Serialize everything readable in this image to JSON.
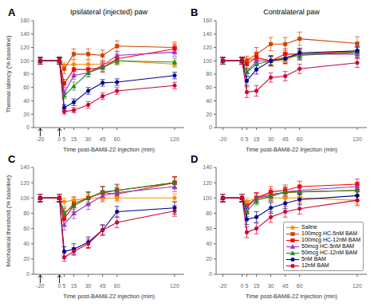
{
  "chart_data": [
    {
      "type": "line",
      "title": "Ipsilateral (injected) paw",
      "y_label": "Thermal latency (% baseline)",
      "x_label": "Time post-BAM8-22 injection (min)",
      "x": [
        -20,
        0,
        5,
        15,
        30,
        45,
        60,
        120
      ],
      "xlim": [
        -27,
        130
      ],
      "xticks": [
        -20,
        0,
        5,
        15,
        30,
        45,
        60,
        120
      ],
      "ylim": [
        0,
        160
      ],
      "yticks": [
        0,
        20,
        40,
        60,
        80,
        100,
        120,
        140,
        160
      ],
      "grid": false,
      "annotations": [
        {
          "text": "A"
        },
        {
          "x": -20,
          "arrow": true
        },
        {
          "x": 0,
          "arrow": true
        }
      ],
      "series": [
        {
          "name": "Saline",
          "color": "#FF8C00",
          "marker": "circle",
          "line_style": "dashed_before",
          "values": [
            100,
            100,
            93,
            95,
            95,
            95,
            100,
            95
          ],
          "errors": [
            5,
            5,
            5,
            5,
            5,
            5,
            5,
            5
          ]
        },
        {
          "name": "100mcg HC-5nM BAM",
          "color": "#CC4400",
          "marker": "square",
          "line_style": "solid",
          "values": [
            100,
            100,
            88,
            110,
            110,
            108,
            122,
            120
          ],
          "errors": [
            5,
            5,
            7,
            8,
            8,
            8,
            8,
            8
          ]
        },
        {
          "name": "100mcg HC-12nM BAM",
          "color": "#FF0000",
          "marker": "square",
          "line_style": "solid",
          "values": [
            100,
            100,
            66,
            87,
            87,
            90,
            103,
            118
          ],
          "errors": [
            5,
            5,
            6,
            7,
            7,
            7,
            7,
            7
          ]
        },
        {
          "name": "50mcg HC-5nM BAM",
          "color": "#9933CC",
          "marker": "triangle",
          "line_style": "dashed_before",
          "values": [
            100,
            100,
            52,
            78,
            82,
            93,
            108,
            113
          ],
          "errors": [
            5,
            5,
            5,
            6,
            6,
            6,
            6,
            6
          ]
        },
        {
          "name": "50mcg HC-12nM BAM",
          "color": "#228B22",
          "marker": "triangle",
          "line_style": "solid",
          "values": [
            100,
            100,
            48,
            62,
            82,
            90,
            100,
            98
          ],
          "errors": [
            5,
            5,
            5,
            6,
            6,
            6,
            6,
            6
          ]
        },
        {
          "name": "5nM BAM",
          "color": "#00008B",
          "marker": "circle",
          "line_style": "solid",
          "values": [
            100,
            100,
            30,
            38,
            55,
            67,
            68,
            78
          ],
          "errors": [
            5,
            5,
            4,
            5,
            5,
            5,
            5,
            5
          ]
        },
        {
          "name": "12nM BAM",
          "color": "#CC0033",
          "marker": "circle",
          "line_style": "solid",
          "values": [
            100,
            100,
            24,
            26,
            34,
            47,
            55,
            63
          ],
          "errors": [
            5,
            5,
            4,
            4,
            5,
            5,
            5,
            5
          ]
        }
      ]
    },
    {
      "type": "line",
      "title": "Contralateral paw",
      "x_label": "Time post-BAM8-22 injection (min)",
      "x": [
        -20,
        0,
        5,
        15,
        30,
        45,
        60,
        120
      ],
      "xlim": [
        -27,
        130
      ],
      "xticks": [
        -20,
        0,
        5,
        15,
        30,
        45,
        60,
        120
      ],
      "ylim": [
        0,
        160
      ],
      "yticks": [
        0,
        20,
        40,
        60,
        80,
        100,
        120,
        140,
        160
      ],
      "grid": false,
      "annotations": [
        {
          "text": "B"
        }
      ],
      "series": [
        {
          "name": "Saline",
          "color": "#FF8C00",
          "marker": "circle",
          "line_style": "dashed_before",
          "values": [
            100,
            100,
            100,
            104,
            100,
            100,
            110,
            115
          ],
          "errors": [
            5,
            5,
            5,
            5,
            5,
            5,
            5,
            5
          ]
        },
        {
          "name": "100mcg HC-5nM BAM",
          "color": "#CC4400",
          "marker": "square",
          "line_style": "solid",
          "values": [
            100,
            100,
            100,
            110,
            125,
            125,
            133,
            126
          ],
          "errors": [
            5,
            5,
            7,
            10,
            10,
            10,
            10,
            10
          ]
        },
        {
          "name": "100mcg HC-12nM BAM",
          "color": "#FF0000",
          "marker": "square",
          "line_style": "solid",
          "values": [
            100,
            100,
            95,
            105,
            100,
            110,
            110,
            113
          ],
          "errors": [
            5,
            5,
            8,
            8,
            8,
            8,
            8,
            8
          ]
        },
        {
          "name": "50mcg HC-5nM BAM",
          "color": "#9933CC",
          "marker": "triangle",
          "line_style": "dashed_before",
          "values": [
            100,
            100,
            83,
            100,
            100,
            105,
            110,
            110
          ],
          "errors": [
            5,
            5,
            6,
            7,
            7,
            7,
            7,
            7
          ]
        },
        {
          "name": "50mcg HC-12nM BAM",
          "color": "#228B22",
          "marker": "triangle",
          "line_style": "solid",
          "values": [
            100,
            100,
            83,
            95,
            100,
            105,
            108,
            113
          ],
          "errors": [
            5,
            5,
            6,
            6,
            7,
            7,
            7,
            7
          ]
        },
        {
          "name": "5nM BAM",
          "color": "#00008B",
          "marker": "circle",
          "line_style": "solid",
          "values": [
            100,
            100,
            70,
            87,
            100,
            103,
            112,
            115
          ],
          "errors": [
            5,
            5,
            7,
            7,
            7,
            7,
            7,
            7
          ]
        },
        {
          "name": "12nM BAM",
          "color": "#CC0033",
          "marker": "circle",
          "line_style": "solid",
          "values": [
            100,
            100,
            53,
            55,
            75,
            77,
            88,
            97
          ],
          "errors": [
            5,
            5,
            8,
            8,
            7,
            7,
            7,
            7
          ]
        }
      ]
    },
    {
      "type": "line",
      "y_label": "Mechanical threshold (% baseline)",
      "x_label": "Time post-BAM8-22 injection (min)",
      "x": [
        -20,
        0,
        5,
        15,
        30,
        45,
        60,
        120
      ],
      "xlim": [
        -27,
        130
      ],
      "xticks": [
        -20,
        0,
        5,
        15,
        30,
        45,
        60,
        120
      ],
      "ylim": [
        0,
        140
      ],
      "yticks": [
        0,
        20,
        40,
        60,
        80,
        100,
        120,
        140
      ],
      "grid": false,
      "annotations": [
        {
          "text": "C"
        },
        {
          "x": -20,
          "arrow": true
        },
        {
          "x": 0,
          "arrow": true
        }
      ],
      "series": [
        {
          "name": "Saline",
          "color": "#FF8C00",
          "marker": "circle",
          "line_style": "dashed_before",
          "values": [
            100,
            100,
            95,
            97,
            100,
            100,
            100,
            100
          ],
          "errors": [
            5,
            5,
            5,
            5,
            5,
            5,
            5,
            5
          ]
        },
        {
          "name": "100mcg HC-5nM BAM",
          "color": "#CC4400",
          "marker": "square",
          "line_style": "solid",
          "values": [
            100,
            100,
            78,
            93,
            100,
            107,
            105,
            120
          ],
          "errors": [
            5,
            5,
            8,
            8,
            8,
            8,
            8,
            8
          ]
        },
        {
          "name": "100mcg HC-12nM BAM",
          "color": "#FF0000",
          "marker": "square",
          "line_style": "solid",
          "values": [
            100,
            100,
            73,
            90,
            100,
            107,
            110,
            120
          ],
          "errors": [
            5,
            5,
            10,
            8,
            8,
            8,
            8,
            8
          ]
        },
        {
          "name": "50mcg HC-5nM BAM",
          "color": "#9933CC",
          "marker": "triangle",
          "line_style": "dashed_before",
          "values": [
            100,
            100,
            65,
            80,
            92,
            103,
            107,
            115
          ],
          "errors": [
            5,
            5,
            7,
            7,
            7,
            7,
            7,
            7
          ]
        },
        {
          "name": "50mcg HC-12nM BAM",
          "color": "#228B22",
          "marker": "triangle",
          "line_style": "solid",
          "values": [
            100,
            100,
            80,
            90,
            100,
            108,
            110,
            120
          ],
          "errors": [
            5,
            5,
            8,
            8,
            7,
            7,
            7,
            7
          ]
        },
        {
          "name": "5nM BAM",
          "color": "#00008B",
          "marker": "circle",
          "line_style": "solid",
          "values": [
            100,
            100,
            30,
            33,
            42,
            58,
            82,
            87
          ],
          "errors": [
            5,
            5,
            6,
            7,
            7,
            7,
            7,
            8
          ]
        },
        {
          "name": "12nM BAM",
          "color": "#CC0033",
          "marker": "circle",
          "line_style": "solid",
          "values": [
            100,
            100,
            22,
            30,
            40,
            58,
            68,
            83
          ],
          "errors": [
            5,
            5,
            5,
            5,
            6,
            6,
            7,
            7
          ]
        }
      ]
    },
    {
      "type": "line",
      "x_label": "Time post-BAM8-22 injection (min)",
      "x": [
        -20,
        0,
        5,
        15,
        30,
        45,
        60,
        120
      ],
      "xlim": [
        -27,
        130
      ],
      "xticks": [
        -20,
        0,
        5,
        15,
        30,
        45,
        60,
        120
      ],
      "ylim": [
        0,
        140
      ],
      "yticks": [
        0,
        20,
        40,
        60,
        80,
        100,
        120,
        140
      ],
      "grid": false,
      "legend": "lower right",
      "annotations": [
        {
          "text": "D"
        }
      ],
      "series": [
        {
          "name": "Saline",
          "color": "#FF8C00",
          "marker": "circle",
          "line_style": "dashed_before",
          "values": [
            100,
            100,
            95,
            100,
            100,
            100,
            100,
            97
          ],
          "errors": [
            5,
            5,
            5,
            5,
            5,
            5,
            5,
            5
          ]
        },
        {
          "name": "100mcg HC-5nM BAM",
          "color": "#CC4400",
          "marker": "square",
          "line_style": "solid",
          "values": [
            100,
            100,
            90,
            100,
            105,
            107,
            108,
            110
          ],
          "errors": [
            5,
            5,
            7,
            7,
            7,
            7,
            7,
            7
          ]
        },
        {
          "name": "100mcg HC-12nM BAM",
          "color": "#FF0000",
          "marker": "square",
          "line_style": "solid",
          "values": [
            100,
            100,
            88,
            100,
            108,
            110,
            115,
            118
          ],
          "errors": [
            5,
            5,
            7,
            7,
            7,
            7,
            7,
            7
          ]
        },
        {
          "name": "50mcg HC-5nM BAM",
          "color": "#9933CC",
          "marker": "triangle",
          "line_style": "dashed_before",
          "values": [
            100,
            100,
            88,
            100,
            103,
            108,
            110,
            115
          ],
          "errors": [
            5,
            5,
            6,
            6,
            6,
            6,
            6,
            6
          ]
        },
        {
          "name": "50mcg HC-12nM BAM",
          "color": "#228B22",
          "marker": "triangle",
          "line_style": "solid",
          "values": [
            100,
            100,
            82,
            97,
            102,
            108,
            108,
            110
          ],
          "errors": [
            5,
            5,
            6,
            6,
            6,
            6,
            6,
            6
          ]
        },
        {
          "name": "5nM BAM",
          "color": "#00008B",
          "marker": "circle",
          "line_style": "solid",
          "values": [
            100,
            100,
            72,
            75,
            87,
            93,
            98,
            103
          ],
          "errors": [
            5,
            5,
            7,
            7,
            7,
            7,
            7,
            7
          ]
        },
        {
          "name": "12nM BAM",
          "color": "#CC0033",
          "marker": "circle",
          "line_style": "solid",
          "values": [
            100,
            100,
            55,
            60,
            75,
            82,
            86,
            97
          ],
          "errors": [
            5,
            5,
            7,
            7,
            7,
            7,
            7,
            7
          ]
        }
      ]
    }
  ]
}
